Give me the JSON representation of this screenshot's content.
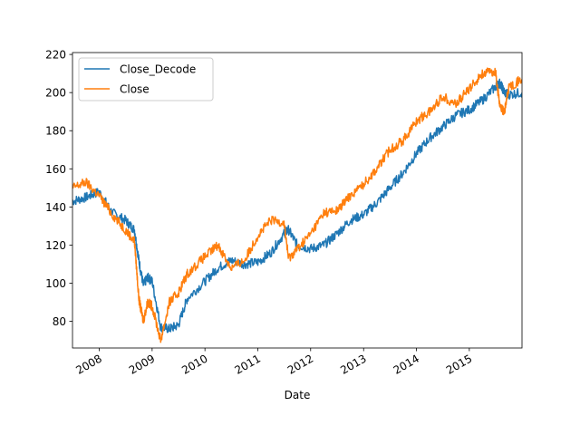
{
  "chart_data": {
    "type": "line",
    "title": "",
    "xlabel": "Date",
    "ylabel": "",
    "x_axis_type": "date",
    "xlim": [
      "2007-07-01",
      "2015-12-31"
    ],
    "ylim": [
      66,
      221
    ],
    "y_ticks": [
      80,
      100,
      120,
      140,
      160,
      180,
      200,
      220
    ],
    "x_tick_labels": [
      "2008",
      "2009",
      "2010",
      "2011",
      "2012",
      "2013",
      "2014",
      "2015"
    ],
    "x_tick_dates": [
      "2008-01-01",
      "2009-01-01",
      "2010-01-01",
      "2011-01-01",
      "2012-01-01",
      "2013-01-01",
      "2014-01-01",
      "2015-01-01"
    ],
    "grid": false,
    "legend_position": "upper-left",
    "series": [
      {
        "name": "Close_Decode",
        "color": "#1f77b4",
        "x": [
          "2007-07-01",
          "2007-10-01",
          "2008-01-01",
          "2008-04-01",
          "2008-07-01",
          "2008-09-01",
          "2008-10-01",
          "2008-11-01",
          "2008-12-01",
          "2009-01-01",
          "2009-03-01",
          "2009-05-01",
          "2009-07-01",
          "2009-09-01",
          "2010-01-01",
          "2010-04-01",
          "2010-07-01",
          "2010-10-01",
          "2011-01-01",
          "2011-04-01",
          "2011-07-01",
          "2011-08-01",
          "2011-10-01",
          "2012-01-01",
          "2012-04-01",
          "2012-07-01",
          "2012-10-01",
          "2013-01-01",
          "2013-04-01",
          "2013-07-01",
          "2013-10-01",
          "2014-01-01",
          "2014-04-01",
          "2014-07-01",
          "2014-10-01",
          "2015-01-01",
          "2015-04-01",
          "2015-07-01",
          "2015-08-01",
          "2015-09-01",
          "2015-10-01",
          "2015-12-31"
        ],
        "values": [
          143,
          145,
          148,
          137,
          133,
          128,
          112,
          99,
          103,
          101,
          77,
          76,
          78,
          92,
          101,
          108,
          112,
          110,
          111,
          116,
          126,
          128,
          120,
          118,
          120,
          126,
          133,
          136,
          142,
          150,
          158,
          168,
          176,
          182,
          188,
          191,
          196,
          203,
          205,
          200,
          199,
          200
        ]
      },
      {
        "name": "Close",
        "color": "#ff7f0e",
        "x": [
          "2007-07-01",
          "2007-10-01",
          "2008-01-01",
          "2008-04-01",
          "2008-07-01",
          "2008-09-01",
          "2008-10-01",
          "2008-11-01",
          "2008-12-01",
          "2009-01-01",
          "2009-03-01",
          "2009-05-01",
          "2009-07-01",
          "2009-09-01",
          "2010-01-01",
          "2010-04-01",
          "2010-07-01",
          "2010-10-01",
          "2011-01-01",
          "2011-04-01",
          "2011-07-01",
          "2011-08-01",
          "2011-10-01",
          "2012-01-01",
          "2012-04-01",
          "2012-07-01",
          "2012-10-01",
          "2013-01-01",
          "2013-04-01",
          "2013-07-01",
          "2013-10-01",
          "2014-01-01",
          "2014-04-01",
          "2014-07-01",
          "2014-10-01",
          "2015-01-01",
          "2015-04-01",
          "2015-07-01",
          "2015-08-01",
          "2015-09-01",
          "2015-10-01",
          "2015-12-31"
        ],
        "values": [
          150,
          153,
          146,
          136,
          128,
          122,
          92,
          80,
          90,
          88,
          70,
          90,
          95,
          105,
          114,
          120,
          108,
          112,
          125,
          133,
          132,
          113,
          118,
          126,
          137,
          138,
          146,
          152,
          160,
          170,
          175,
          185,
          190,
          198,
          194,
          202,
          210,
          211,
          192,
          190,
          203,
          207
        ]
      }
    ]
  }
}
